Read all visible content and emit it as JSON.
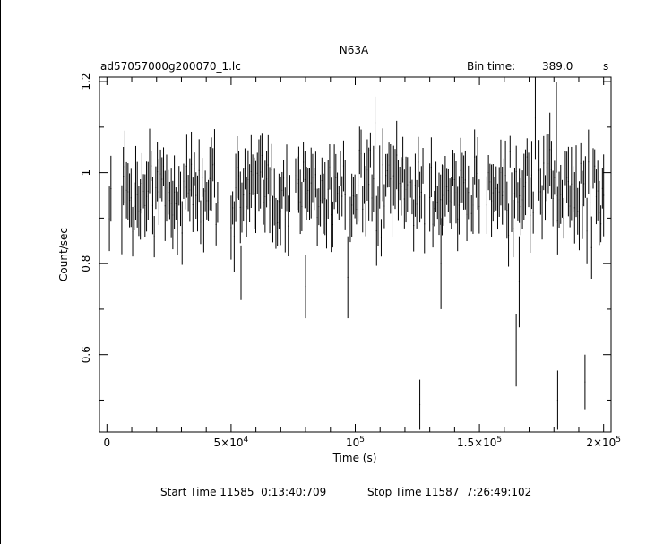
{
  "chart_data": {
    "type": "line",
    "title": "N63A",
    "file_label": "ad57057000g200070_1.lc",
    "bin_time_label": "Bin time:",
    "bin_time_value": "389.0",
    "bin_time_unit": "s",
    "xlabel": "Time (s)",
    "ylabel": "Count/sec",
    "xlim": [
      -3000,
      203000
    ],
    "ylim": [
      0.43,
      1.21
    ],
    "x_ticks": [
      {
        "value": 0,
        "label": "0",
        "exp": ""
      },
      {
        "value": 50000,
        "label": "5×10",
        "exp": "4"
      },
      {
        "value": 100000,
        "label": "10",
        "exp": "5"
      },
      {
        "value": 150000,
        "label": "1.5×10",
        "exp": "5"
      },
      {
        "value": 200000,
        "label": "2×10",
        "exp": "5"
      }
    ],
    "y_ticks": [
      {
        "value": 0.6,
        "label": "0.6"
      },
      {
        "value": 0.8,
        "label": "0.8"
      },
      {
        "value": 1.0,
        "label": "1"
      },
      {
        "value": 1.2,
        "label": "1.2"
      }
    ],
    "grid": false,
    "start_time_label": "Start Time 11585  0:13:40:709",
    "stop_time_label": "Stop Time 11587  7:26:49:102",
    "bin_width": 389.0,
    "segments": [
      {
        "start": 1000,
        "end": 2000
      },
      {
        "start": 6000,
        "end": 45000
      },
      {
        "start": 50000,
        "end": 74000
      },
      {
        "start": 76000,
        "end": 96000
      },
      {
        "start": 98000,
        "end": 128000
      },
      {
        "start": 130000,
        "end": 150000
      },
      {
        "start": 153000,
        "end": 172000
      },
      {
        "start": 174000,
        "end": 200000
      }
    ],
    "outliers": [
      {
        "x": 126000,
        "y": 0.49,
        "err": 0.055
      },
      {
        "x": 164800,
        "y": 0.61,
        "err": 0.08
      },
      {
        "x": 166000,
        "y": 0.76,
        "err": 0.1
      },
      {
        "x": 181500,
        "y": 0.5,
        "err": 0.065
      },
      {
        "x": 192500,
        "y": 0.54,
        "err": 0.06
      },
      {
        "x": 97000,
        "y": 0.77,
        "err": 0.09
      },
      {
        "x": 80000,
        "y": 0.75,
        "err": 0.07
      },
      {
        "x": 54000,
        "y": 0.78,
        "err": 0.06
      },
      {
        "x": 134500,
        "y": 0.8,
        "err": 0.1
      },
      {
        "x": 172500,
        "y": 1.12,
        "err": 0.09
      },
      {
        "x": 181000,
        "y": 1.1,
        "err": 0.1
      },
      {
        "x": 200000,
        "y": 0.95,
        "err": 0.09
      }
    ],
    "mean": 0.96,
    "scatter": 0.06,
    "typical_err": 0.055
  }
}
